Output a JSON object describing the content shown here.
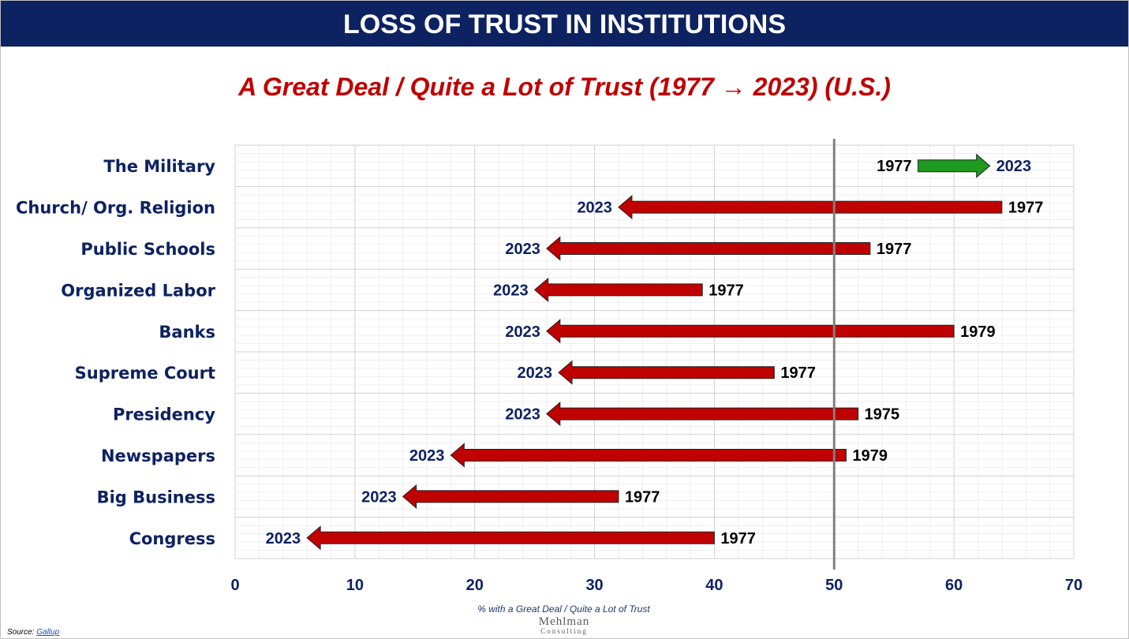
{
  "header": {
    "title": "LOSS OF TRUST IN INSTITUTIONS"
  },
  "subtitle": "A Great Deal / Quite a Lot of Trust (1977 → 2023) (U.S.)",
  "source": {
    "label": "Source:",
    "link": "Gallup"
  },
  "logo": {
    "line1": "Mehlman",
    "line2": "Consulting"
  },
  "colors": {
    "header_bg": "#0d2261",
    "decline": "#c00000",
    "increase": "#1e9a1e",
    "label": "#0d2261",
    "reference_line": "#808080"
  },
  "chart_data": {
    "type": "arrow-dumbbell",
    "title": "A Great Deal / Quite a Lot of Trust (1977 → 2023) (U.S.)",
    "xlabel": "% with a Great Deal / Quite a Lot of Trust",
    "xlim": [
      0,
      70
    ],
    "xticks": [
      0,
      10,
      20,
      30,
      40,
      50,
      60,
      70
    ],
    "reference_x": 50,
    "grid": true,
    "rows": [
      {
        "name": "The Military",
        "start": 57,
        "start_year": "1977",
        "end": 63,
        "end_year": "2023"
      },
      {
        "name": "Church/ Org. Religion",
        "start": 64,
        "start_year": "1977",
        "end": 32,
        "end_year": "2023"
      },
      {
        "name": "Public Schools",
        "start": 53,
        "start_year": "1977",
        "end": 26,
        "end_year": "2023"
      },
      {
        "name": "Organized Labor",
        "start": 39,
        "start_year": "1977",
        "end": 25,
        "end_year": "2023"
      },
      {
        "name": "Banks",
        "start": 60,
        "start_year": "1979",
        "end": 26,
        "end_year": "2023"
      },
      {
        "name": "Supreme Court",
        "start": 45,
        "start_year": "1977",
        "end": 27,
        "end_year": "2023"
      },
      {
        "name": "Presidency",
        "start": 52,
        "start_year": "1975",
        "end": 26,
        "end_year": "2023"
      },
      {
        "name": "Newspapers",
        "start": 51,
        "start_year": "1979",
        "end": 18,
        "end_year": "2023"
      },
      {
        "name": "Big Business",
        "start": 32,
        "start_year": "1977",
        "end": 14,
        "end_year": "2023"
      },
      {
        "name": "Congress",
        "start": 40,
        "start_year": "1977",
        "end": 6,
        "end_year": "2023"
      }
    ]
  }
}
